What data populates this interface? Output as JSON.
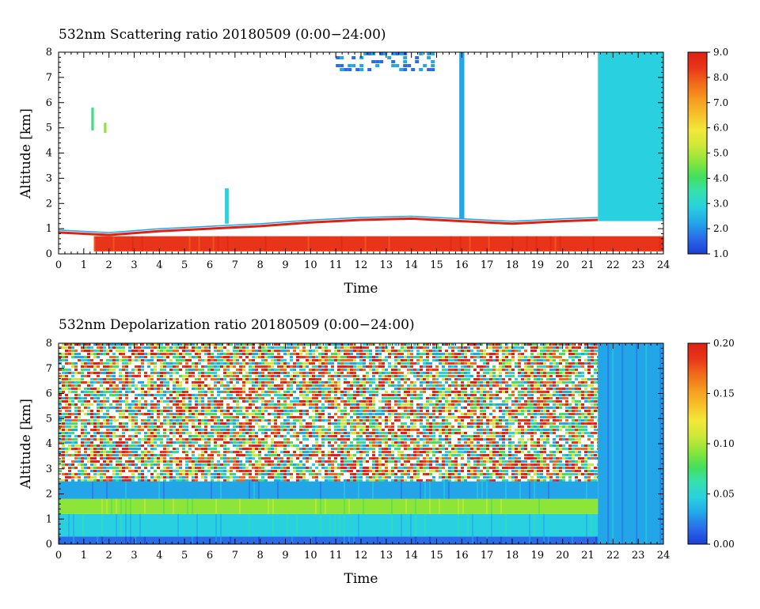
{
  "figure": {
    "colormap": [
      "#1a3fd6",
      "#2a6be8",
      "#22a6e8",
      "#29d0e0",
      "#35e0b0",
      "#45df5a",
      "#8ee53a",
      "#cfe838",
      "#f2e83a",
      "#f7c02a",
      "#f59a20",
      "#f06a1a",
      "#e8351a",
      "#dd2214"
    ],
    "panels": [
      {
        "title": "532nm Scattering ratio  20180509 (0:00−24:00)",
        "xlabel": "Time",
        "ylabel": "Altitude [km]",
        "x_ticks": [
          "0",
          "1",
          "2",
          "3",
          "4",
          "5",
          "6",
          "7",
          "8",
          "9",
          "10",
          "11",
          "12",
          "13",
          "14",
          "15",
          "16",
          "17",
          "18",
          "19",
          "20",
          "21",
          "22",
          "23",
          "24"
        ],
        "y_ticks": [
          "0",
          "1",
          "2",
          "3",
          "4",
          "5",
          "6",
          "7",
          "8"
        ],
        "colorbar_ticks": [
          "1.0",
          "2.0",
          "3.0",
          "4.0",
          "5.0",
          "6.0",
          "7.0",
          "8.0",
          "9.0"
        ]
      },
      {
        "title": "532nm Depolarization ratio  20180509 (0:00−24:00)",
        "xlabel": "Time",
        "ylabel": "Altitude [km]",
        "x_ticks": [
          "0",
          "1",
          "2",
          "3",
          "4",
          "5",
          "6",
          "7",
          "8",
          "9",
          "10",
          "11",
          "12",
          "13",
          "14",
          "15",
          "16",
          "17",
          "18",
          "19",
          "20",
          "21",
          "22",
          "23",
          "24"
        ],
        "y_ticks": [
          "0",
          "1",
          "2",
          "3",
          "4",
          "5",
          "6",
          "7",
          "8"
        ],
        "colorbar_ticks": [
          "0.00",
          "0.05",
          "0.10",
          "0.15",
          "0.20"
        ]
      }
    ]
  },
  "chart_data": [
    {
      "type": "heatmap",
      "title": "532nm Scattering ratio  20180509 (0:00−24:00)",
      "xlabel": "Time",
      "ylabel": "Altitude [km]",
      "xlim": [
        0,
        24
      ],
      "ylim": [
        0,
        8
      ],
      "colorbar": {
        "range": [
          1.0,
          9.0
        ],
        "ticks": [
          1,
          2,
          3,
          4,
          5,
          6,
          7,
          8,
          9
        ]
      },
      "features": [
        {
          "feature": "boundary layer top (high scattering)",
          "time_h": [
            0,
            2,
            4,
            6,
            8,
            10,
            12,
            14,
            16,
            18,
            20,
            21.4
          ],
          "altitude_km": [
            0.85,
            0.75,
            0.9,
            1.0,
            1.1,
            1.25,
            1.35,
            1.4,
            1.3,
            1.2,
            1.3,
            1.35
          ],
          "value": 9.0
        },
        {
          "feature": "near-surface layer",
          "time_h": [
            1.4,
            24
          ],
          "altitude_km": [
            0.1,
            0.7
          ],
          "value": 8.5
        },
        {
          "feature": "cloud column",
          "time_h": [
            15.9,
            16.1
          ],
          "altitude_km": [
            1.4,
            8.0
          ],
          "value": 2.5
        },
        {
          "feature": "cloud column",
          "time_h": [
            6.6,
            6.75
          ],
          "altitude_km": [
            1.2,
            2.6
          ],
          "value": 3.0
        },
        {
          "feature": "small cloud",
          "time_h": [
            1.3,
            1.4
          ],
          "altitude_km": [
            4.9,
            5.8
          ],
          "value": 4.0
        },
        {
          "feature": "small cloud",
          "time_h": [
            1.8,
            1.9
          ],
          "altitude_km": [
            4.8,
            5.2
          ],
          "value": 4.5
        },
        {
          "feature": "scattered cloud",
          "time_h": [
            11,
            15
          ],
          "altitude_km": [
            7.3,
            8.0
          ],
          "value": 2.0
        },
        {
          "feature": "cloud deck",
          "time_h": [
            21.4,
            24
          ],
          "altitude_km": [
            1.3,
            8.0
          ],
          "value": 3.0
        }
      ]
    },
    {
      "type": "heatmap",
      "title": "532nm Depolarization ratio  20180509 (0:00−24:00)",
      "xlabel": "Time",
      "ylabel": "Altitude [km]",
      "xlim": [
        0,
        24
      ],
      "ylim": [
        0,
        8
      ],
      "colorbar": {
        "range": [
          0.0,
          0.2
        ],
        "ticks": [
          0.0,
          0.05,
          0.1,
          0.15,
          0.2
        ]
      },
      "features": [
        {
          "feature": "noisy upper region",
          "time_h": [
            0,
            21.4
          ],
          "altitude_km": [
            2.5,
            8.0
          ],
          "value": 0.18
        },
        {
          "feature": "low depolarization band",
          "time_h": [
            0,
            21.4
          ],
          "altitude_km": [
            1.8,
            2.5
          ],
          "value": 0.03
        },
        {
          "feature": "aerosol layer",
          "time_h": [
            0,
            21.4
          ],
          "altitude_km": [
            1.2,
            1.8
          ],
          "value": 0.09
        },
        {
          "feature": "boundary layer",
          "time_h": [
            0,
            24
          ],
          "altitude_km": [
            0.3,
            1.2
          ],
          "value": 0.04
        },
        {
          "feature": "surface layer",
          "time_h": [
            0,
            24
          ],
          "altitude_km": [
            0.0,
            0.3
          ],
          "value": 0.02
        },
        {
          "feature": "cloud deck",
          "time_h": [
            21.4,
            24
          ],
          "altitude_km": [
            0.0,
            8.0
          ],
          "value": 0.03
        }
      ]
    }
  ]
}
